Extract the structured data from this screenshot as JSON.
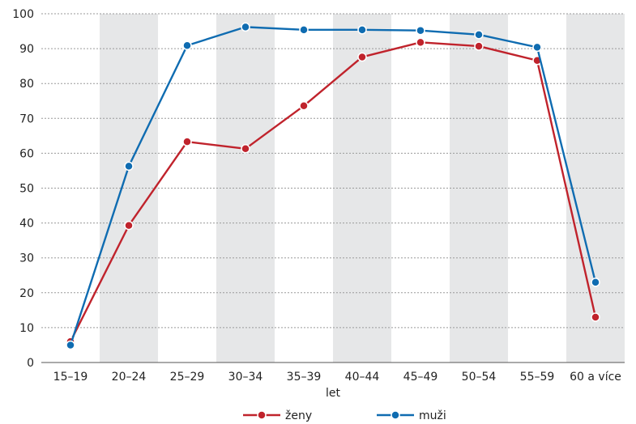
{
  "chart_data": {
    "type": "line",
    "categories": [
      "15–19",
      "20–24",
      "25–29",
      "30–34",
      "35–39",
      "40–44",
      "45–49",
      "50–54",
      "55–59",
      "60 a více"
    ],
    "series": [
      {
        "name": "ženy",
        "color": "#c0232c",
        "values": [
          6,
          39.3,
          63.3,
          61.3,
          73.6,
          87.6,
          91.8,
          90.7,
          86.6,
          13
        ]
      },
      {
        "name": "muži",
        "color": "#0f6cb1",
        "values": [
          5,
          56.3,
          90.9,
          96.2,
          95.4,
          95.4,
          95.2,
          94,
          90.4,
          23
        ]
      }
    ],
    "xlabel": "let",
    "ylabel": "",
    "ylim": [
      0,
      100
    ],
    "yticks": [
      "0",
      "10",
      "20",
      "30",
      "40",
      "50",
      "60",
      "70",
      "80",
      "90",
      "100"
    ],
    "grid": true,
    "band_color": "#e6e7e8",
    "legend": "bottom"
  }
}
